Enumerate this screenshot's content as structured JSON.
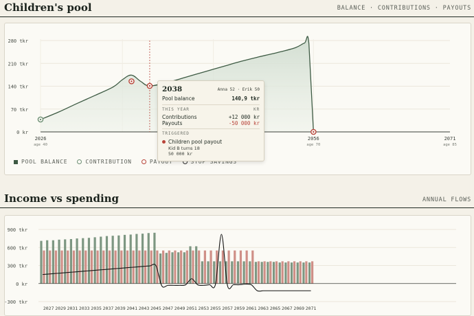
{
  "pool": {
    "title": "Children's pool",
    "nav": "BALANCE · CONTRIBUTIONS · PAYOUTS",
    "legend": [
      "POOL BALANCE",
      "CONTRIBUTION",
      "PAYOUT",
      "STOP SAVINGS"
    ],
    "tooltip": {
      "year": "2038",
      "people": "Anna 52 · Erik 50",
      "balance_label": "Pool balance",
      "balance_value": "140,9 tkr",
      "this_year": "THIS YEAR",
      "currency": "KR",
      "contrib_label": "Contributions",
      "contrib_value": "+12 000 kr",
      "payout_label": "Payouts",
      "payout_value": "-50 000 kr",
      "triggered": "TRIGGERED",
      "event_title": "Children pool payout",
      "event_sub": "Kid B turns 18",
      "event_amount": "50 000 kr"
    }
  },
  "income": {
    "title": "Income vs spending",
    "nav": "ANNUAL FLOWS"
  },
  "colors": {
    "accent_green": "#3d5a43",
    "bar_green": "#7d9782",
    "bar_red": "#cf8f87",
    "payout_red": "#b8443a"
  },
  "chart_data": [
    {
      "type": "area",
      "title": "",
      "y_ticks": [
        "0 kr",
        "70 tkr",
        "140 tkr",
        "210 tkr",
        "280 tkr"
      ],
      "x_ticks": [
        {
          "year": "2026",
          "age": "age 40"
        },
        {
          "year": "2056",
          "age": "age 70"
        },
        {
          "year": "2071",
          "age": "age 85"
        }
      ],
      "ylim": [
        0,
        280
      ],
      "xlim": [
        2026,
        2071
      ],
      "series": [
        {
          "name": "POOL BALANCE",
          "x": [
            2026,
            2028,
            2030,
            2032,
            2034,
            2035,
            2036,
            2037,
            2038,
            2040,
            2042,
            2044,
            2046,
            2048,
            2050,
            2052,
            2054,
            2055,
            2055.5,
            2056
          ],
          "y": [
            38,
            61,
            87,
            112,
            138,
            160,
            174,
            155,
            141,
            152,
            168,
            184,
            200,
            216,
            230,
            243,
            258,
            272,
            270,
            0
          ]
        }
      ],
      "markers": [
        {
          "kind": "contribution",
          "x": 2026,
          "y": 38
        },
        {
          "kind": "payout",
          "x": 2036,
          "y": 155
        },
        {
          "kind": "payout",
          "x": 2038,
          "y": 141
        },
        {
          "kind": "payout",
          "x": 2056,
          "y": 0
        }
      ],
      "cursor_x": 2038
    },
    {
      "type": "bar",
      "y_ticks": [
        "-300 tkr",
        "0 kr",
        "300 tkr",
        "600 tkr",
        "900 tkr"
      ],
      "ylim": [
        -300,
        900
      ],
      "x_ticks": [
        "2027",
        "2029",
        "2031",
        "2033",
        "2035",
        "2037",
        "2039",
        "2041",
        "2043",
        "2045",
        "2047",
        "2049",
        "2051",
        "2053",
        "2055",
        "2057",
        "2059",
        "2061",
        "2063",
        "2065",
        "2067",
        "2069",
        "2071"
      ],
      "categories": [
        2026,
        2027,
        2028,
        2029,
        2030,
        2031,
        2032,
        2033,
        2034,
        2035,
        2036,
        2037,
        2038,
        2039,
        2040,
        2041,
        2042,
        2043,
        2044,
        2045,
        2046,
        2047,
        2048,
        2049,
        2050,
        2051,
        2052,
        2053,
        2054,
        2055,
        2056,
        2057,
        2058,
        2059,
        2060,
        2061,
        2062,
        2063,
        2064,
        2065,
        2066,
        2067,
        2068,
        2069,
        2070,
        2071
      ],
      "series": [
        {
          "name": "income",
          "values": [
            710,
            720,
            720,
            730,
            735,
            740,
            750,
            755,
            760,
            770,
            780,
            790,
            795,
            800,
            810,
            815,
            825,
            830,
            840,
            845,
            500,
            510,
            520,
            520,
            520,
            620,
            620,
            370,
            370,
            370,
            370,
            370,
            370,
            370,
            370,
            370,
            360,
            360,
            360,
            360,
            350,
            350,
            350,
            350,
            350,
            350
          ]
        },
        {
          "name": "spending",
          "values": [
            550,
            550,
            550,
            550,
            550,
            550,
            550,
            550,
            550,
            550,
            550,
            550,
            550,
            550,
            550,
            550,
            550,
            550,
            550,
            550,
            550,
            550,
            550,
            550,
            550,
            550,
            550,
            550,
            550,
            550,
            550,
            550,
            550,
            550,
            550,
            550,
            370,
            370,
            370,
            370,
            370,
            370,
            370,
            370,
            370,
            370
          ]
        },
        {
          "name": "net",
          "values": [
            150,
            158,
            166,
            174,
            182,
            190,
            198,
            206,
            214,
            222,
            230,
            238,
            246,
            254,
            262,
            270,
            278,
            286,
            294,
            300,
            -40,
            -30,
            -30,
            -30,
            -20,
            80,
            -20,
            -30,
            -20,
            -10,
            820,
            -30,
            -20,
            -20,
            -10,
            -20,
            -120,
            -120,
            -120,
            -120,
            -120,
            -120,
            -120,
            -120,
            -120,
            -120
          ]
        }
      ]
    }
  ]
}
